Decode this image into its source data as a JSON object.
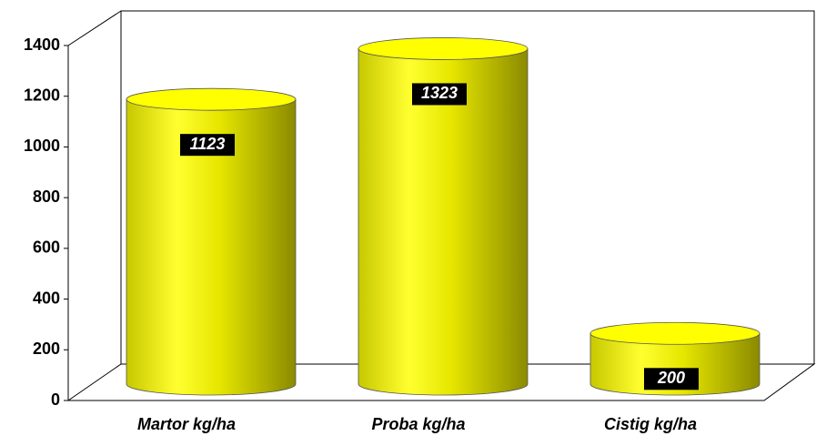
{
  "chart_data": {
    "type": "cylinder",
    "categories": [
      "Martor kg/ha",
      "Proba kg/ha",
      "Cistig kg/ha"
    ],
    "values": [
      1123,
      1323,
      200
    ],
    "color": "#ffff00",
    "ylim": [
      0,
      1400
    ],
    "yticks": [
      0,
      200,
      400,
      600,
      800,
      1000,
      1200,
      1400
    ],
    "grid": false
  }
}
